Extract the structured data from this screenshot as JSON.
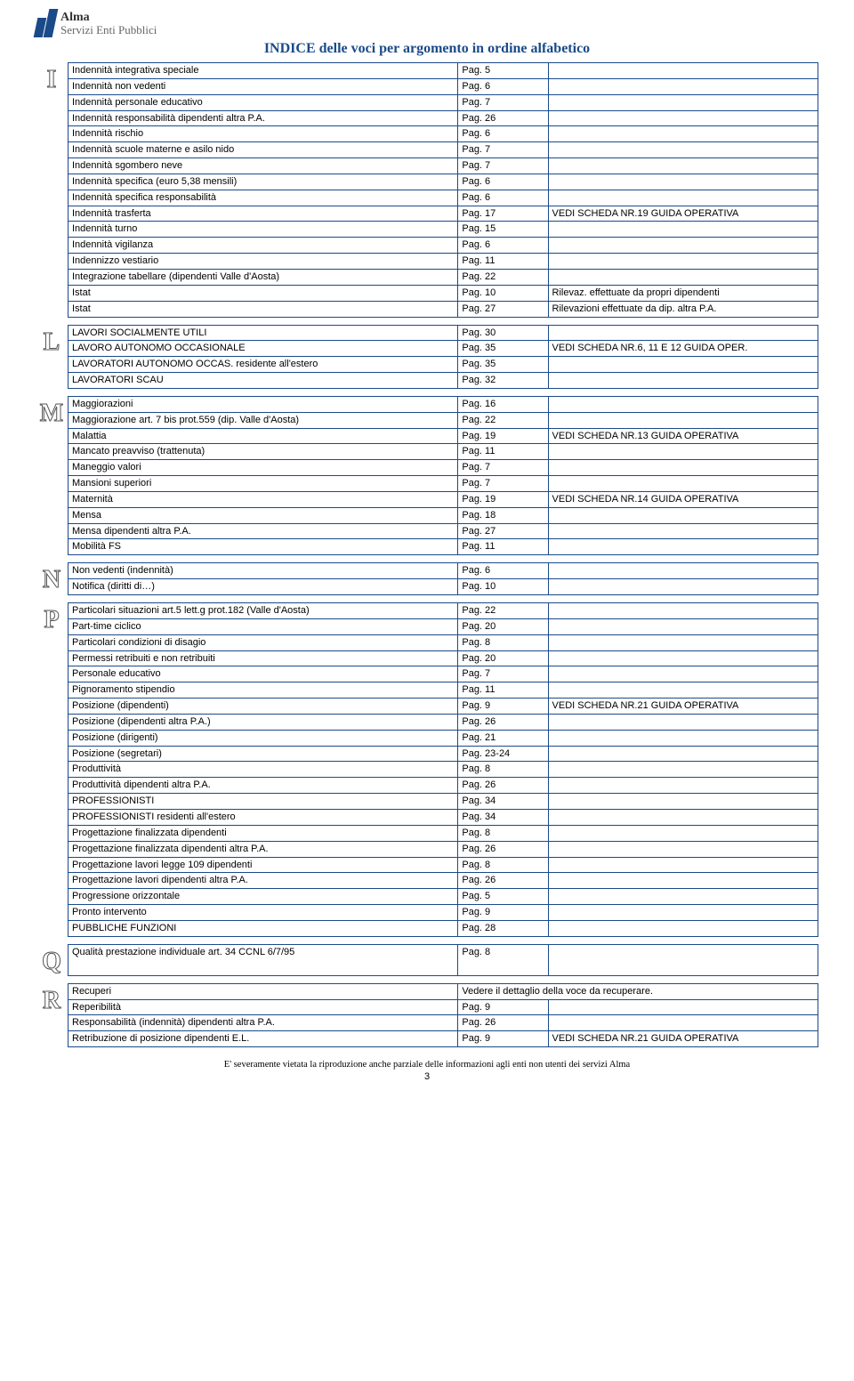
{
  "logo": {
    "line1": "Alma",
    "line2": "Servizi Enti Pubblici"
  },
  "title": "INDICE delle voci per argomento in ordine alfabetico",
  "footer": "E' severamente vietata la riproduzione anche parziale delle informazioni agli enti non utenti dei servizi Alma",
  "page_number": "3",
  "sections": [
    {
      "letter": "I",
      "rows": [
        {
          "c1": "Indennità integrativa speciale",
          "c2": "Pag. 5",
          "c3": ""
        },
        {
          "c1": "Indennità non vedenti",
          "c2": "Pag. 6",
          "c3": ""
        },
        {
          "c1": "Indennità personale educativo",
          "c2": "Pag. 7",
          "c3": ""
        },
        {
          "c1": "Indennità responsabilità dipendenti altra P.A.",
          "c2": "Pag. 26",
          "c3": ""
        },
        {
          "c1": "Indennità rischio",
          "c2": "Pag. 6",
          "c3": ""
        },
        {
          "c1": "Indennità scuole materne e asilo nido",
          "c2": "Pag. 7",
          "c3": ""
        },
        {
          "c1": "Indennità sgombero neve",
          "c2": "Pag. 7",
          "c3": ""
        },
        {
          "c1": "Indennità specifica (euro 5,38 mensili)",
          "c2": "Pag. 6",
          "c3": ""
        },
        {
          "c1": "Indennità specifica responsabilità",
          "c2": "Pag. 6",
          "c3": ""
        },
        {
          "c1": "Indennità trasferta",
          "c2": "Pag. 17",
          "c3": "VEDI SCHEDA NR.19 GUIDA OPERATIVA"
        },
        {
          "c1": "Indennità turno",
          "c2": "Pag. 15",
          "c3": ""
        },
        {
          "c1": "Indennità vigilanza",
          "c2": "Pag. 6",
          "c3": ""
        },
        {
          "c1": "Indennizzo vestiario",
          "c2": "Pag. 11",
          "c3": ""
        },
        {
          "c1": "Integrazione tabellare (dipendenti Valle d'Aosta)",
          "c2": "Pag. 22",
          "c3": ""
        },
        {
          "c1": "Istat",
          "c2": "Pag. 10",
          "c3": "Rilevaz. effettuate da propri dipendenti"
        },
        {
          "c1": "Istat",
          "c2": "Pag. 27",
          "c3": "Rilevazioni effettuate da dip. altra P.A."
        }
      ]
    },
    {
      "letter": "L",
      "rows": [
        {
          "c1": "LAVORI SOCIALMENTE UTILI",
          "c2": "Pag. 30",
          "c3": ""
        },
        {
          "c1": "LAVORO AUTONOMO OCCASIONALE",
          "c2": "Pag. 35",
          "c3": "VEDI SCHEDA NR.6, 11 E 12 GUIDA OPER."
        },
        {
          "c1": "LAVORATORI AUTONOMO OCCAS. residente all'estero",
          "c2": "Pag. 35",
          "c3": ""
        },
        {
          "c1": "LAVORATORI SCAU",
          "c2": "Pag. 32",
          "c3": ""
        }
      ]
    },
    {
      "letter": "M",
      "rows": [
        {
          "c1": "Maggiorazioni",
          "c2": "Pag. 16",
          "c3": ""
        },
        {
          "c1": "Maggiorazione art. 7 bis prot.559 (dip. Valle d'Aosta)",
          "c2": "Pag. 22",
          "c3": ""
        },
        {
          "c1": "Malattia",
          "c2": "Pag. 19",
          "c3": "VEDI SCHEDA NR.13 GUIDA OPERATIVA"
        },
        {
          "c1": "Mancato preavviso (trattenuta)",
          "c2": "Pag. 11",
          "c3": ""
        },
        {
          "c1": "Maneggio valori",
          "c2": "Pag. 7",
          "c3": ""
        },
        {
          "c1": "Mansioni superiori",
          "c2": "Pag. 7",
          "c3": ""
        },
        {
          "c1": "Maternità",
          "c2": "Pag. 19",
          "c3": "VEDI SCHEDA NR.14 GUIDA OPERATIVA"
        },
        {
          "c1": "Mensa",
          "c2": "Pag. 18",
          "c3": ""
        },
        {
          "c1": "Mensa dipendenti altra P.A.",
          "c2": "Pag. 27",
          "c3": ""
        },
        {
          "c1": "Mobilità FS",
          "c2": "Pag. 11",
          "c3": ""
        }
      ]
    },
    {
      "letter": "N",
      "rows": [
        {
          "c1": "Non vedenti (indennità)",
          "c2": "Pag. 6",
          "c3": ""
        },
        {
          "c1": "Notifica (diritti di…)",
          "c2": "Pag. 10",
          "c3": ""
        }
      ]
    },
    {
      "letter": "P",
      "rows": [
        {
          "c1": "Particolari situazioni art.5 lett.g prot.182 (Valle d'Aosta)",
          "c2": "Pag. 22",
          "c3": ""
        },
        {
          "c1": "Part-time ciclico",
          "c2": "Pag. 20",
          "c3": ""
        },
        {
          "c1": "Particolari condizioni di disagio",
          "c2": "Pag. 8",
          "c3": ""
        },
        {
          "c1": "Permessi retribuiti e non retribuiti",
          "c2": "Pag. 20",
          "c3": ""
        },
        {
          "c1": "Personale educativo",
          "c2": "Pag. 7",
          "c3": ""
        },
        {
          "c1": "Pignoramento stipendio",
          "c2": "Pag. 11",
          "c3": ""
        },
        {
          "c1": "Posizione (dipendenti)",
          "c2": "Pag. 9",
          "c3": "VEDI SCHEDA NR.21 GUIDA OPERATIVA"
        },
        {
          "c1": "Posizione (dipendenti altra P.A.)",
          "c2": "Pag. 26",
          "c3": ""
        },
        {
          "c1": "Posizione (dirigenti)",
          "c2": "Pag. 21",
          "c3": ""
        },
        {
          "c1": "Posizione (segretari)",
          "c2": "Pag. 23-24",
          "c3": ""
        },
        {
          "c1": "Produttività",
          "c2": "Pag. 8",
          "c3": ""
        },
        {
          "c1": "Produttività dipendenti altra P.A.",
          "c2": "Pag. 26",
          "c3": ""
        },
        {
          "c1": "PROFESSIONISTI",
          "c2": "Pag. 34",
          "c3": ""
        },
        {
          "c1": "PROFESSIONISTI residenti all'estero",
          "c2": "Pag. 34",
          "c3": ""
        },
        {
          "c1": "Progettazione finalizzata dipendenti",
          "c2": "Pag. 8",
          "c3": ""
        },
        {
          "c1": "Progettazione finalizzata dipendenti altra P.A.",
          "c2": "Pag. 26",
          "c3": ""
        },
        {
          "c1": "Progettazione lavori legge 109 dipendenti",
          "c2": "Pag. 8",
          "c3": ""
        },
        {
          "c1": "Progettazione lavori dipendenti altra P.A.",
          "c2": "Pag. 26",
          "c3": ""
        },
        {
          "c1": "Progressione orizzontale",
          "c2": "Pag. 5",
          "c3": ""
        },
        {
          "c1": "Pronto intervento",
          "c2": "Pag. 9",
          "c3": ""
        },
        {
          "c1": "PUBBLICHE FUNZIONI",
          "c2": "Pag. 28",
          "c3": ""
        }
      ]
    },
    {
      "letter": "Q",
      "rows": [
        {
          "c1": "Qualità prestazione individuale art. 34 CCNL 6/7/95",
          "c2": "Pag. 8",
          "c3": ""
        }
      ]
    },
    {
      "letter": "R",
      "rows": [
        {
          "c1": "Recuperi",
          "c2": "",
          "c3": "",
          "merge": "Vedere il dettaglio della voce da recuperare."
        },
        {
          "c1": "Reperibilità",
          "c2": "Pag. 9",
          "c3": ""
        },
        {
          "c1": "Responsabilità (indennità) dipendenti altra P.A.",
          "c2": "Pag. 26",
          "c3": ""
        },
        {
          "c1": "Retribuzione di posizione dipendenti E.L.",
          "c2": "Pag. 9",
          "c3": "VEDI SCHEDA NR.21 GUIDA OPERATIVA"
        }
      ]
    }
  ]
}
